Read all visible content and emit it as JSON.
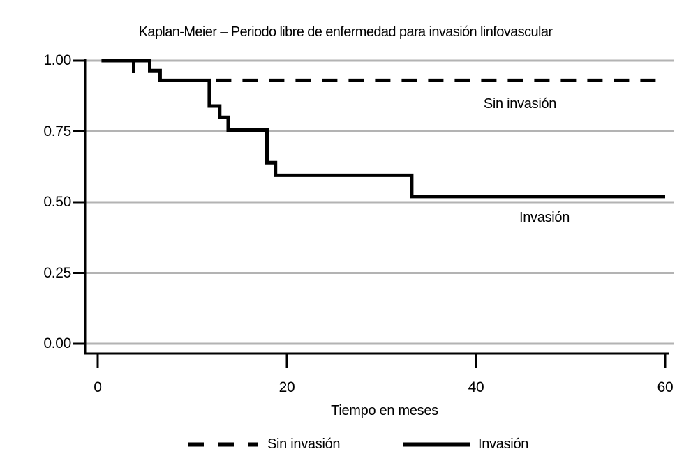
{
  "title": "Kaplan-Meier – Periodo libre de enfermedad para invasión linfovascular",
  "x_axis": {
    "label": "Tiempo en meses",
    "ticks": [
      "0",
      "20",
      "40",
      "60"
    ],
    "tick_values": [
      0,
      20,
      40,
      60
    ]
  },
  "y_axis": {
    "ticks": [
      "1.00",
      "0.75",
      "0.50",
      "0.25",
      "0.00"
    ],
    "tick_values": [
      1.0,
      0.75,
      0.5,
      0.25,
      0.0
    ]
  },
  "annotations": {
    "sin_invasion": "Sin invasión",
    "invasion": "Invasión"
  },
  "legend": {
    "items": [
      {
        "label": "Sin invasión",
        "style": "dashed"
      },
      {
        "label": "Invasión",
        "style": "solid"
      }
    ]
  },
  "colors": {
    "curve": "#000000",
    "grid": "#b3b3b3",
    "background": "#ffffff",
    "text": "#000000"
  },
  "chart_data": {
    "type": "line",
    "subtype": "kaplan-meier-step",
    "title": "Kaplan-Meier – Periodo libre de enfermedad para invasión linfovascular",
    "xlabel": "Tiempo en meses",
    "ylabel": "",
    "xlim": [
      0,
      60
    ],
    "ylim": [
      0,
      1
    ],
    "grid": true,
    "legend_position": "bottom",
    "series": [
      {
        "name": "Sin invasión",
        "style": "dashed",
        "steps": [
          [
            0,
            1.0
          ],
          [
            5.5,
            0.965
          ],
          [
            6.6,
            0.93
          ],
          [
            60,
            0.93
          ]
        ],
        "drawn_visible_from": 12.5
      },
      {
        "name": "Invasión",
        "style": "solid",
        "steps": [
          [
            0.4,
            1.0
          ],
          [
            5.5,
            0.965
          ],
          [
            6.6,
            0.93
          ],
          [
            11.8,
            0.84
          ],
          [
            12.9,
            0.8
          ],
          [
            13.8,
            0.755
          ],
          [
            17.9,
            0.64
          ],
          [
            18.8,
            0.595
          ],
          [
            33.2,
            0.52
          ],
          [
            60,
            0.52
          ]
        ],
        "censor_times": [
          3.8
        ]
      }
    ]
  }
}
